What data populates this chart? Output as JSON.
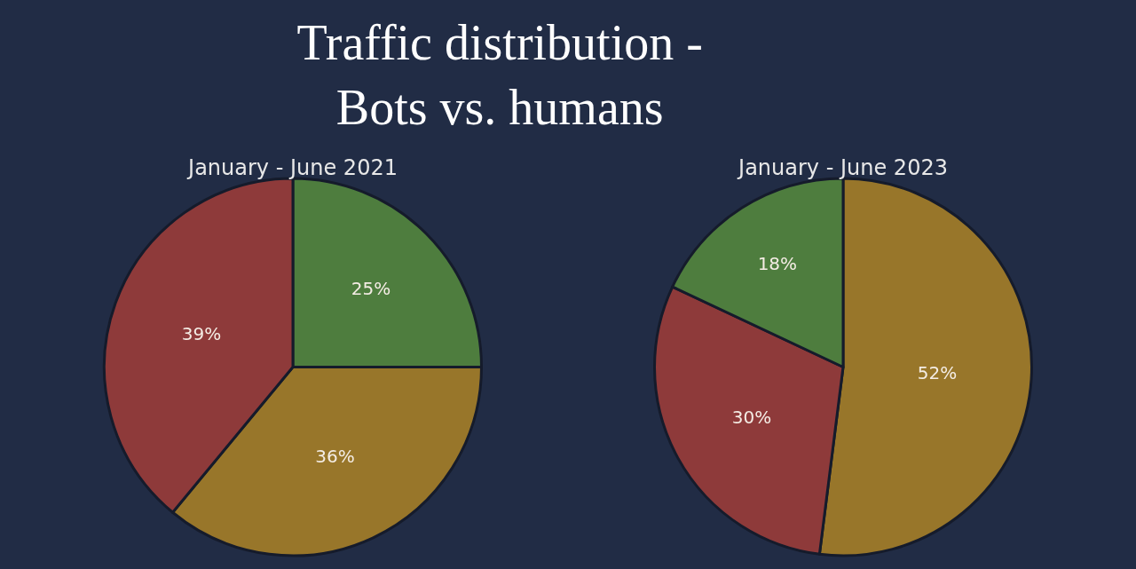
{
  "chart_data": [
    {
      "type": "pie",
      "title": "Traffic distribution -\nBots vs. humans",
      "subtitle": "January - June 2021",
      "categories": [
        null,
        null,
        null
      ],
      "values": [
        25,
        36,
        39
      ],
      "colors": [
        "#4e7d3e",
        "#98762a",
        "#8e3a3a"
      ],
      "value_labels": [
        "25%",
        "36%",
        "39%"
      ]
    },
    {
      "type": "pie",
      "subtitle": "January - June 2023",
      "categories": [
        null,
        null,
        null
      ],
      "values": [
        52,
        30,
        18
      ],
      "colors": [
        "#98762a",
        "#8e3a3a",
        "#4e7d3e"
      ],
      "value_labels": [
        "52%",
        "30%",
        "18%"
      ]
    }
  ]
}
